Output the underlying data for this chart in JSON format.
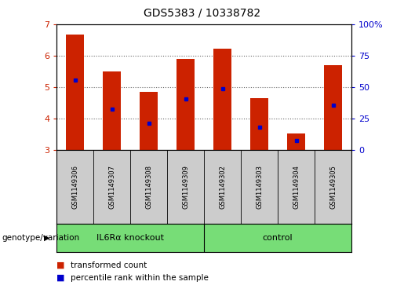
{
  "title": "GDS5383 / 10338782",
  "samples": [
    "GSM1149306",
    "GSM1149307",
    "GSM1149308",
    "GSM1149309",
    "GSM1149302",
    "GSM1149303",
    "GSM1149304",
    "GSM1149305"
  ],
  "bar_bottoms": [
    3,
    3,
    3,
    3,
    3,
    3,
    3,
    3
  ],
  "bar_tops": [
    6.67,
    5.5,
    4.85,
    5.9,
    6.22,
    4.65,
    3.52,
    5.7
  ],
  "percentile_values": [
    5.22,
    4.3,
    3.85,
    4.62,
    4.95,
    3.72,
    3.28,
    4.42
  ],
  "ylim_left": [
    3,
    7
  ],
  "ylim_right": [
    0,
    100
  ],
  "yticks_left": [
    3,
    4,
    5,
    6,
    7
  ],
  "yticks_right": [
    0,
    25,
    50,
    75,
    100
  ],
  "bar_color": "#cc2200",
  "dot_color": "#0000cc",
  "bar_width": 0.5,
  "groups": [
    {
      "label": "IL6Rα knockout",
      "indices": [
        0,
        1,
        2,
        3
      ],
      "color": "#77dd77"
    },
    {
      "label": "control",
      "indices": [
        4,
        5,
        6,
        7
      ],
      "color": "#77dd77"
    }
  ],
  "group_label_prefix": "genotype/variation",
  "plot_bg": "#ffffff",
  "tick_area_bg": "#cccccc",
  "left_axis_color": "#cc2200",
  "right_axis_color": "#0000cc",
  "legend_items": [
    {
      "color": "#cc2200",
      "label": "transformed count"
    },
    {
      "color": "#0000cc",
      "label": "percentile rank within the sample"
    }
  ],
  "grid_color": "#000000",
  "grid_alpha": 0.6
}
